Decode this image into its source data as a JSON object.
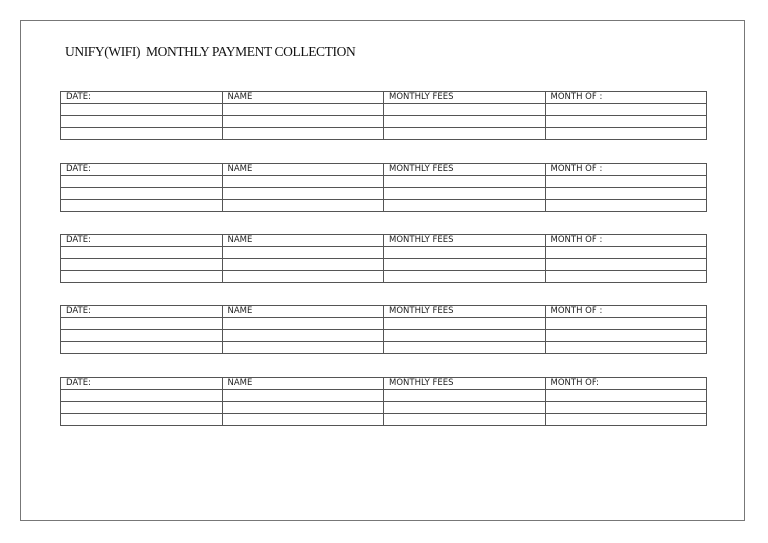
{
  "document": {
    "title": "UNIFY(WIFI)  MONTHLY PAYMENT COLLECTION",
    "tables": [
      {
        "headers": [
          "DATE:",
          "NAME",
          "MONTHLY FEES",
          "MONTH OF :"
        ],
        "empty_rows": 3
      },
      {
        "headers": [
          "DATE:",
          "NAME",
          "MONTHLY FEES",
          "MONTH OF :"
        ],
        "empty_rows": 3
      },
      {
        "headers": [
          "DATE:",
          "NAME",
          "MONTHLY FEES",
          "MONTH OF :"
        ],
        "empty_rows": 3
      },
      {
        "headers": [
          "DATE:",
          "NAME",
          "MONTHLY FEES",
          "MONTH OF :"
        ],
        "empty_rows": 3
      },
      {
        "headers": [
          "DATE:",
          "NAME",
          "MONTHLY FEES",
          "MONTH OF:"
        ],
        "empty_rows": 3
      }
    ]
  }
}
